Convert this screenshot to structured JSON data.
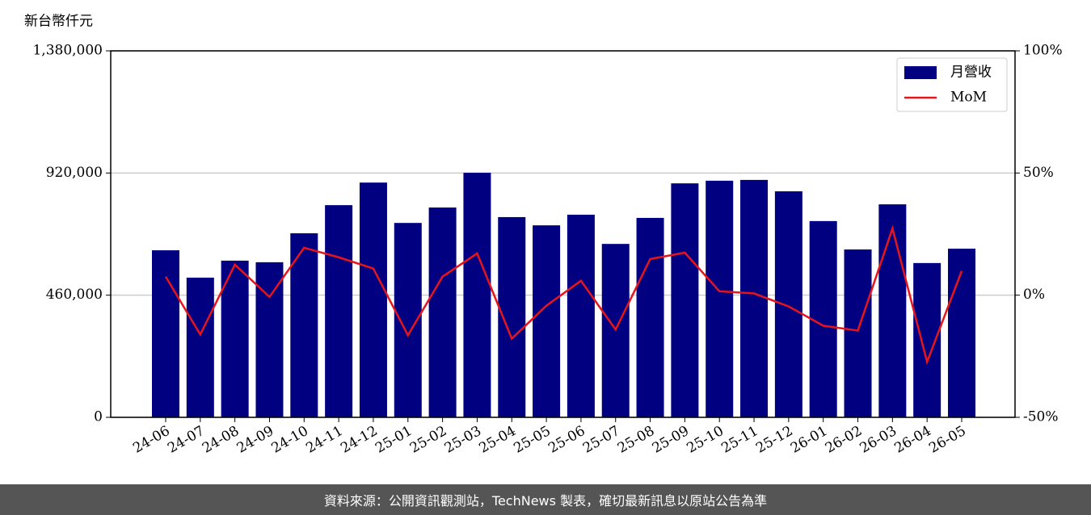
{
  "chart_data": {
    "type": "bar_line",
    "y_label": "新台幣仟元",
    "footer": "資料來源：公開資訊觀測站，TechNews 製表，確切最新訊息以原站公告為準",
    "categories": [
      "24-06",
      "24-07",
      "24-08",
      "24-09",
      "24-10",
      "24-11",
      "24-12",
      "25-01",
      "25-02",
      "25-03",
      "25-04",
      "25-05",
      "25-06",
      "25-07",
      "25-08",
      "25-09",
      "25-10",
      "25-11",
      "25-12",
      "26-01",
      "26-02",
      "26-03",
      "26-04",
      "26-05"
    ],
    "series": [
      {
        "name": "月營收",
        "color": "#000080",
        "type": "bar",
        "values": [
          629000,
          526000,
          590000,
          584000,
          693000,
          799000,
          884000,
          732000,
          790000,
          921000,
          754000,
          723000,
          763000,
          653000,
          751000,
          881000,
          891000,
          894000,
          851000,
          739000,
          632000,
          802000,
          581000,
          635000
        ]
      },
      {
        "name": "MoM",
        "color": "#e8141c",
        "type": "line",
        "axis": "y2",
        "values": [
          7.6,
          -16.1,
          12.5,
          -0.7,
          19.4,
          15.5,
          10.9,
          -16.4,
          7.6,
          17.1,
          -17.8,
          -4.3,
          5.9,
          -14.1,
          14.8,
          17.4,
          1.6,
          0.7,
          -4.6,
          -12.5,
          -14.5,
          27.3,
          -27.3,
          9.9
        ]
      }
    ],
    "ylim": [
      0,
      1380000
    ],
    "yticks": [
      {
        "value": 0,
        "label": "0"
      },
      {
        "value": 460000,
        "label": "460,000"
      },
      {
        "value": 920000,
        "label": "920,000"
      },
      {
        "value": 1380000,
        "label": "1,380,000"
      }
    ],
    "y2lim": [
      -50,
      100
    ],
    "y2ticks": [
      {
        "value": -50,
        "label": "-50%"
      },
      {
        "value": 0,
        "label": "0%"
      },
      {
        "value": 50,
        "label": "50%"
      },
      {
        "value": 100,
        "label": "100%"
      }
    ],
    "grid": true,
    "legend": "upper right"
  }
}
